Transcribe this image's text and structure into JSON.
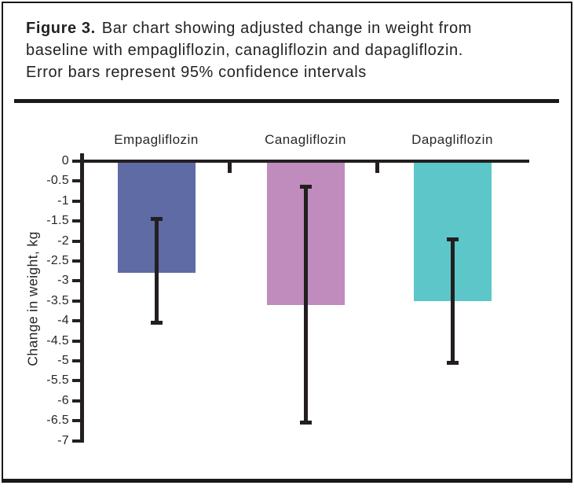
{
  "figure": {
    "caption": {
      "label": "Figure 3.",
      "lines": [
        "Bar chart showing adjusted change in weight from",
        "baseline with empagliflozin, canagliflozin and dapagliflozin.",
        "Error bars represent 95% confidence intervals"
      ]
    }
  },
  "chart_data": {
    "type": "bar",
    "title": "Adjusted change in weight from baseline (Figure 3)",
    "ylabel": "Change in weight, kg",
    "categories": [
      "Empagliflozin",
      "Canagliflozin",
      "Dapagliflozin"
    ],
    "values": [
      -2.8,
      -3.6,
      -3.5
    ],
    "error_bars_95ci": [
      {
        "high": -1.4,
        "low": -4.1
      },
      {
        "high": -0.6,
        "low": -6.6
      },
      {
        "high": -1.9,
        "low": -5.1
      }
    ],
    "bar_colors": [
      "#5F6BA5",
      "#BF8CBD",
      "#5CC6C9"
    ],
    "axis_color": "#231F20",
    "ylim": [
      -7,
      0
    ],
    "ytick_step": 0.5,
    "ytick_labels": [
      "0",
      "-0.5",
      "-1",
      "-1.5",
      "-2",
      "-2.5",
      "-3",
      "-3.5",
      "-4",
      "-4.5",
      "-5",
      "-5.5",
      "-6",
      "-6.5",
      "-7"
    ],
    "grid": false,
    "legend": "none"
  }
}
